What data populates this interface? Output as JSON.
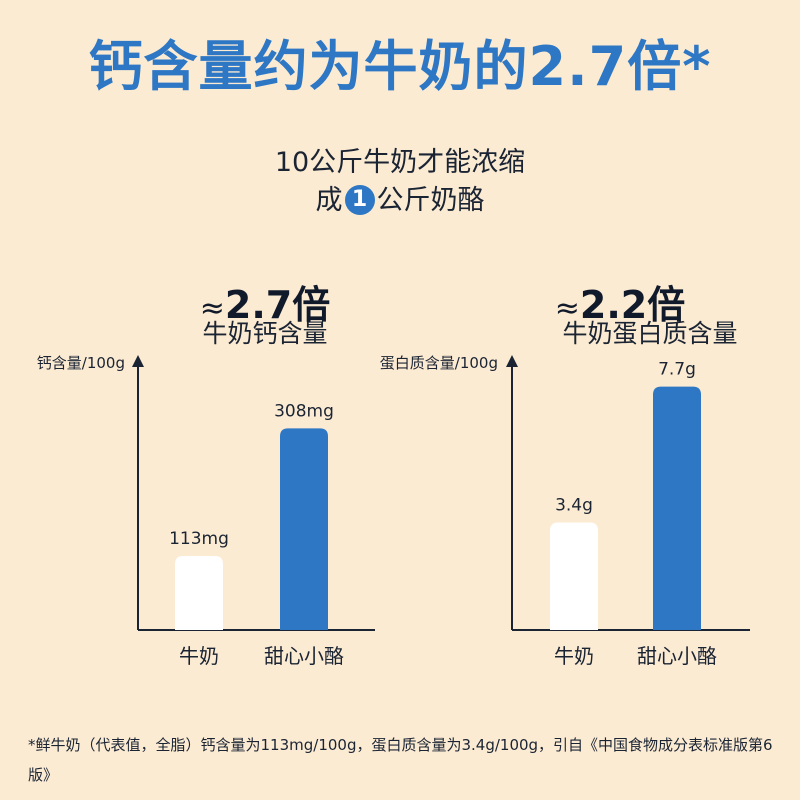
{
  "headline": "钙含量约为牛奶的2.7倍*",
  "subtitle": {
    "line1": "10公斤牛奶才能浓缩",
    "line2_before": "成",
    "line2_number": "1",
    "line2_after": "公斤奶酪"
  },
  "colors": {
    "accent": "#2d77c4",
    "milk_bar": "#ffffff",
    "background": "#fcebd3"
  },
  "chart_data": [
    {
      "type": "bar",
      "approx_symbol": "≈",
      "ratio_label": "2.7倍",
      "metric_label": "牛奶钙含量",
      "ylabel": "钙含量/100g",
      "categories": [
        "牛奶",
        "甜心小酪"
      ],
      "values": [
        113,
        308
      ],
      "value_labels": [
        "113mg",
        "308mg"
      ],
      "ylim": [
        0,
        420
      ],
      "grid": false
    },
    {
      "type": "bar",
      "approx_symbol": "≈",
      "ratio_label": "2.2倍",
      "metric_label": "牛奶蛋白质含量",
      "ylabel": "蛋白质含量/100g",
      "categories": [
        "牛奶",
        "甜心小酪"
      ],
      "values": [
        3.4,
        7.7
      ],
      "value_labels": [
        "3.4g",
        "7.7g"
      ],
      "ylim": [
        0,
        8.7
      ],
      "grid": false
    }
  ],
  "footnote": "*鲜牛奶（代表值，全脂）钙含量为113mg/100g，蛋白质含量为3.4g/100g，引自《中国食物成分表标准版第6版》"
}
